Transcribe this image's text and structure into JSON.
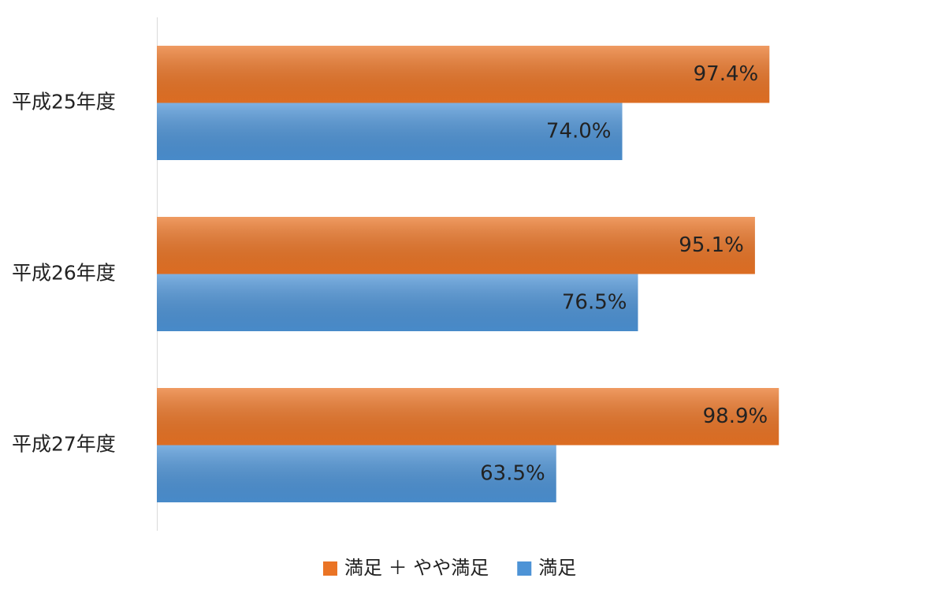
{
  "chart_data": {
    "type": "bar",
    "orientation": "horizontal",
    "categories": [
      "平成25年度",
      "平成26年度",
      "平成27年度"
    ],
    "series": [
      {
        "name": "満足 ＋ やや満足",
        "color": "#ea7425",
        "values": [
          97.4,
          95.1,
          98.9
        ],
        "value_labels": [
          "97.4%",
          "95.1%",
          "98.9%"
        ]
      },
      {
        "name": "満足",
        "color": "#4d93d6",
        "values": [
          74.0,
          76.5,
          63.5
        ],
        "value_labels": [
          "74.0%",
          "76.5%",
          "63.5%"
        ]
      }
    ],
    "xlim": [
      0,
      100
    ],
    "legend": "bottom"
  }
}
